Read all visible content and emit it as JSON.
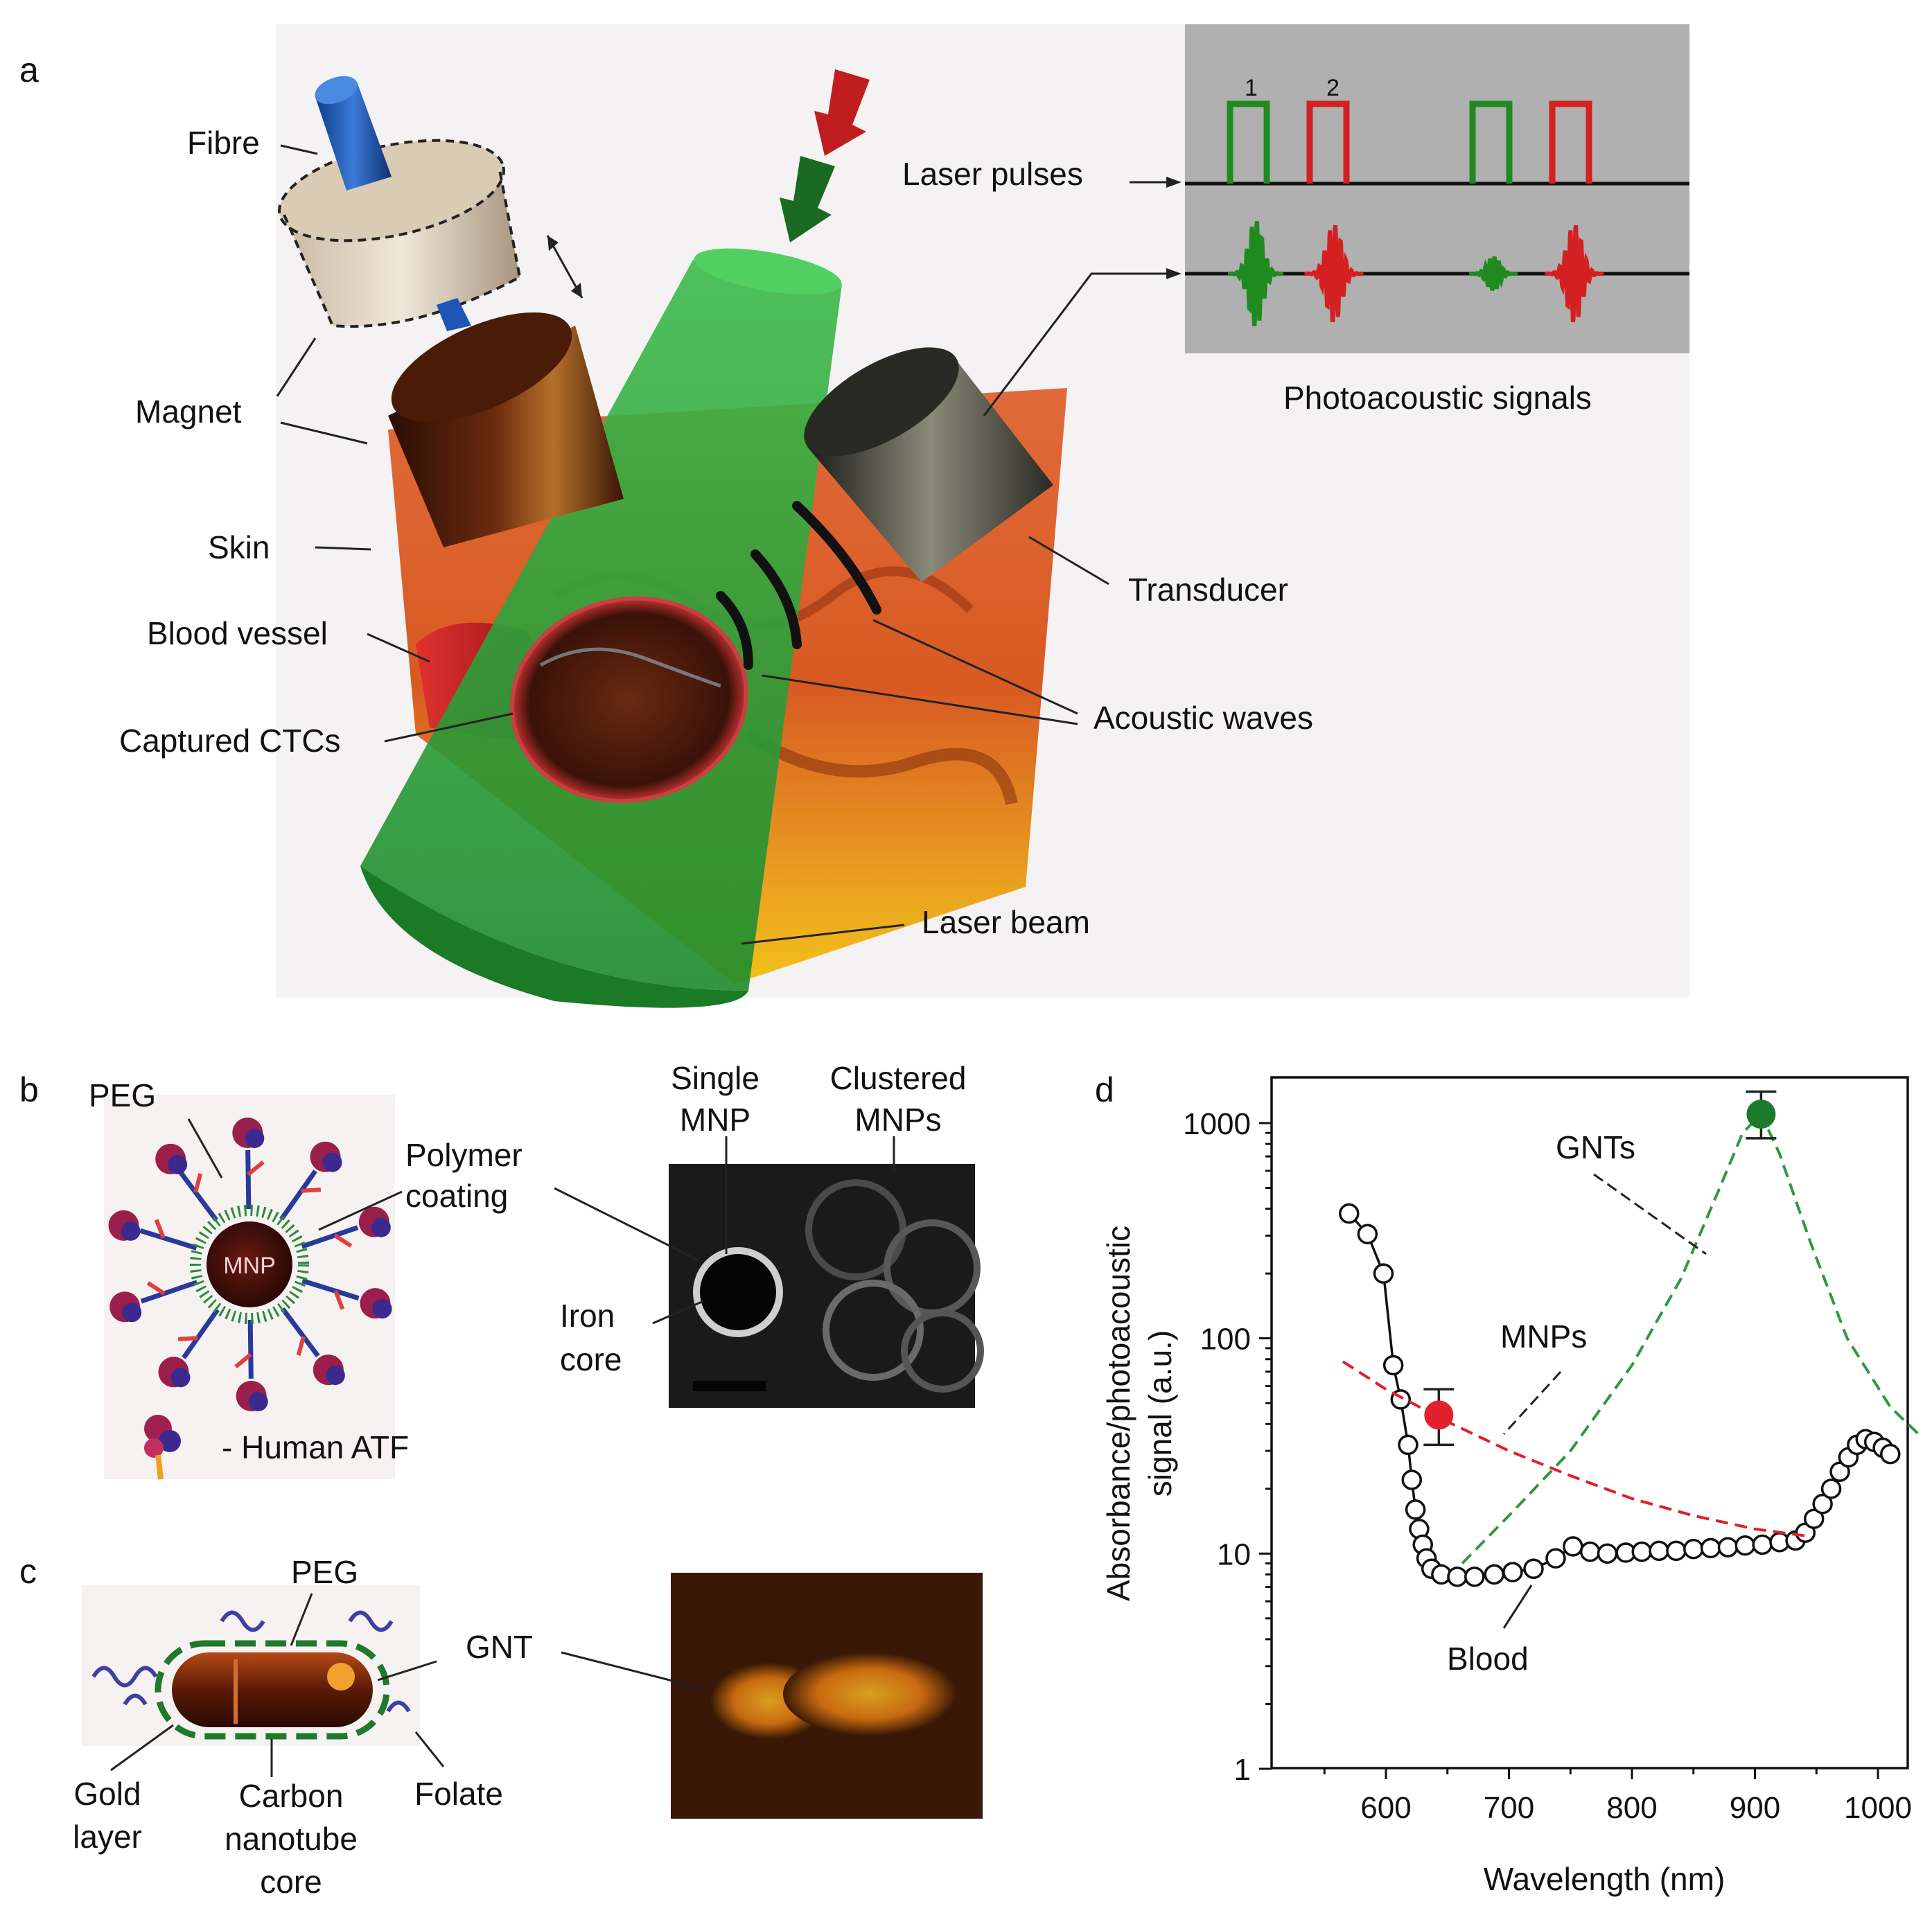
{
  "panels": {
    "a": "a",
    "b": "b",
    "c": "c",
    "d": "d"
  },
  "panel_a": {
    "fibre": "Fibre",
    "magnet": "Magnet",
    "skin": "Skin",
    "blood_vessel": "Blood vessel",
    "captured_ctcs": "Captured CTCs",
    "laser_pulses": "Laser pulses",
    "transducer": "Transducer",
    "acoustic_waves": "Acoustic waves",
    "laser_beam": "Laser beam",
    "photoacoustic_signals": "Photoacoustic signals",
    "pulse_1": "1",
    "pulse_2": "2",
    "colors": {
      "green": "#1f8a1f",
      "red": "#d42020",
      "panel_bg": "#b0b0b0",
      "beam": "#2ea33a",
      "tissue": "#d9682f"
    }
  },
  "panel_b": {
    "peg": "PEG",
    "polymer_line1": "Polymer",
    "polymer_line2": "coating",
    "mnp": "MNP",
    "human_atf": "- Human ATF",
    "single_line1": "Single",
    "single_line2": "MNP",
    "clustered_line1": "Clustered",
    "clustered_line2": "MNPs",
    "iron_line1": "Iron",
    "iron_line2": "core"
  },
  "panel_c": {
    "peg": "PEG",
    "gnt": "GNT",
    "gold_line1": "Gold",
    "gold_line2": "layer",
    "carbon_line1": "Carbon",
    "carbon_line2": "nanotube",
    "carbon_line3": "core",
    "folate": "Folate"
  },
  "chart_data": {
    "type": "line",
    "xlabel": "Wavelength (nm)",
    "ylabel_line1": "Absorbance/photoacoustic",
    "ylabel_line2": "signal (a.u.)",
    "xlim": [
      540,
      1035
    ],
    "ylim": [
      1,
      1500
    ],
    "y_scale": "log",
    "x_ticks": [
      600,
      700,
      800,
      900,
      1000
    ],
    "y_ticks": [
      1,
      10,
      100,
      1000
    ],
    "x_tick_labels": [
      "600",
      "700",
      "800",
      "900",
      "1000"
    ],
    "y_tick_labels": [
      "1",
      "10",
      "100",
      "1000"
    ],
    "annotations": {
      "gnts": "GNTs",
      "mnps": "MNPs",
      "blood": "Blood"
    },
    "series": [
      {
        "name": "Blood",
        "style": "open-circles-line",
        "color": "#111111",
        "x": [
          570,
          585,
          598,
          606,
          612,
          618,
          621,
          624,
          627,
          630,
          633,
          637,
          645,
          658,
          672,
          688,
          703,
          720,
          738,
          752,
          766,
          780,
          795,
          808,
          822,
          836,
          850,
          864,
          878,
          892,
          906,
          920,
          933,
          941,
          948,
          955,
          962,
          969,
          976,
          983,
          990,
          997,
          1004,
          1010
        ],
        "y": [
          380,
          305,
          200,
          75,
          52,
          32,
          22,
          16,
          13,
          11,
          9.5,
          8.5,
          8.0,
          7.8,
          7.8,
          8.0,
          8.2,
          8.5,
          9.5,
          10.8,
          10.2,
          10.0,
          10.1,
          10.2,
          10.3,
          10.3,
          10.5,
          10.6,
          10.7,
          10.9,
          11.0,
          11.3,
          11.5,
          12.5,
          14.5,
          17,
          20,
          24,
          28,
          32,
          34,
          33,
          31,
          29
        ]
      },
      {
        "name": "MNPs",
        "style": "dashed",
        "color": "#e0202a",
        "x": [
          565,
          600,
          650,
          700,
          750,
          800,
          850,
          900,
          945
        ],
        "y": [
          78,
          58,
          41,
          30,
          23,
          18,
          15,
          13,
          12
        ]
      },
      {
        "name": "GNTs",
        "style": "dashed",
        "color": "#2e9a3c",
        "x": [
          662,
          700,
          750,
          800,
          840,
          870,
          890,
          905,
          920,
          945,
          975,
          1010,
          1035
        ],
        "y": [
          9,
          15,
          30,
          75,
          190,
          480,
          900,
          1100,
          720,
          280,
          100,
          48,
          35
        ]
      },
      {
        "name": "MNP measurement",
        "style": "marker",
        "color": "#e0202a",
        "x": [
          643
        ],
        "y": [
          44
        ],
        "y_err": [
          32,
          58
        ]
      },
      {
        "name": "GNT measurement",
        "style": "marker",
        "color": "#1c7a2c",
        "x": [
          905
        ],
        "y": [
          1100
        ],
        "y_err": [
          850,
          1400
        ]
      }
    ]
  }
}
